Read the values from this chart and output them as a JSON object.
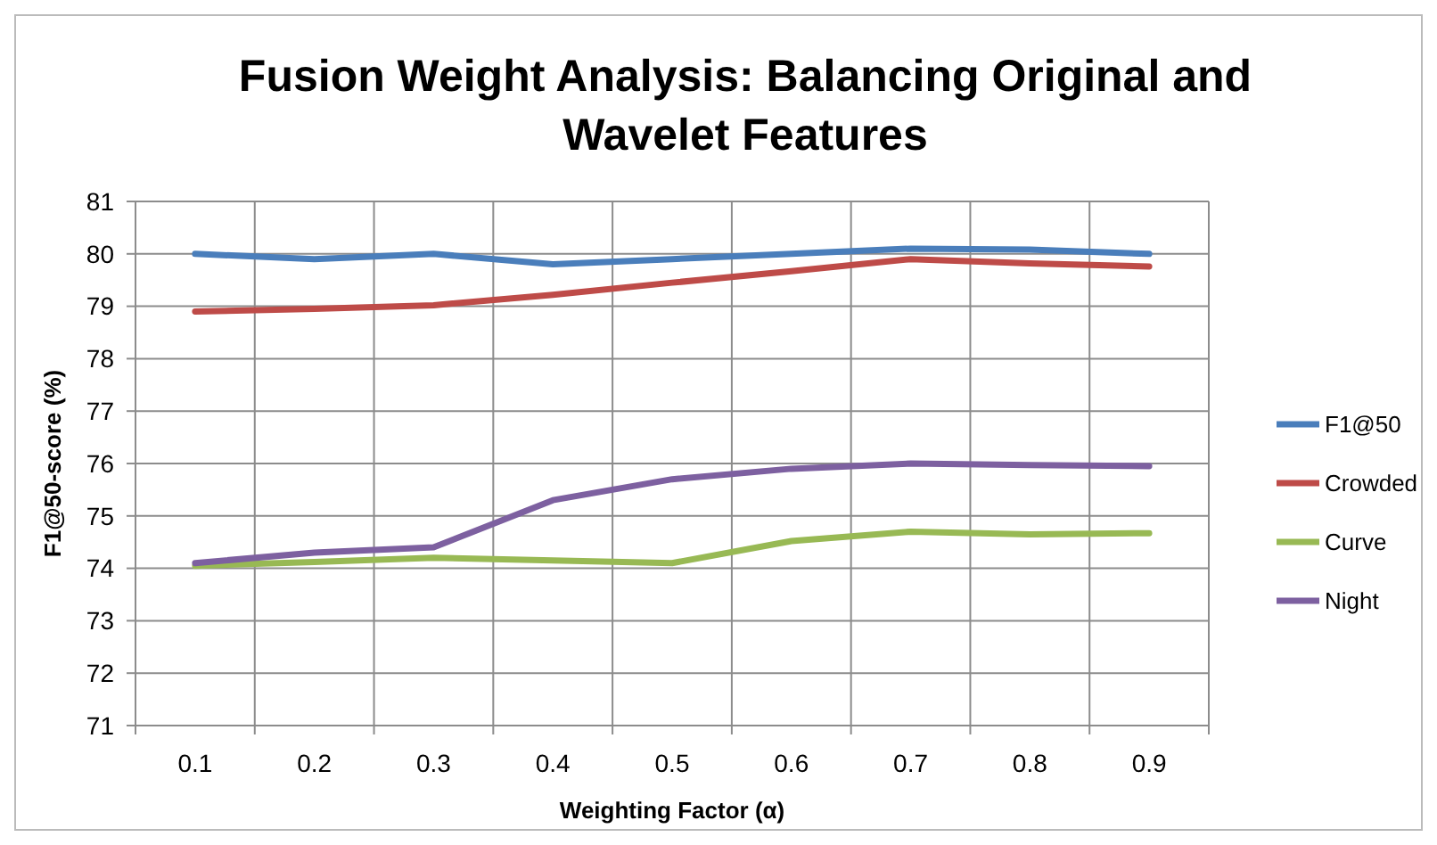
{
  "chart_data": {
    "type": "line",
    "title": "Fusion Weight Analysis: Balancing Original and Wavelet Features",
    "xlabel": "Weighting Factor (α)",
    "ylabel": "F1@50-score (%)",
    "categories": [
      "0.1",
      "0.2",
      "0.3",
      "0.4",
      "0.5",
      "0.6",
      "0.7",
      "0.8",
      "0.9"
    ],
    "series": [
      {
        "name": "F1@50",
        "color": "#4a7ebb",
        "values": [
          80.0,
          79.9,
          80.0,
          79.8,
          79.9,
          80.0,
          80.1,
          80.08,
          80.0
        ]
      },
      {
        "name": "Crowded",
        "color": "#be4b48",
        "values": [
          78.9,
          78.95,
          79.02,
          79.22,
          79.45,
          79.67,
          79.9,
          79.82,
          79.76
        ]
      },
      {
        "name": "Curve",
        "color": "#98b954",
        "values": [
          74.05,
          74.12,
          74.2,
          74.15,
          74.1,
          74.52,
          74.7,
          74.65,
          74.67
        ]
      },
      {
        "name": "Night",
        "color": "#7d60a0",
        "values": [
          74.1,
          74.3,
          74.4,
          75.3,
          75.7,
          75.9,
          76.0,
          75.97,
          75.95
        ]
      }
    ],
    "ylim": [
      71,
      81
    ],
    "yticks": [
      71,
      72,
      73,
      74,
      75,
      76,
      77,
      78,
      79,
      80,
      81
    ],
    "grid": true,
    "legend": "right",
    "marker": "none",
    "line_style": "solid"
  }
}
